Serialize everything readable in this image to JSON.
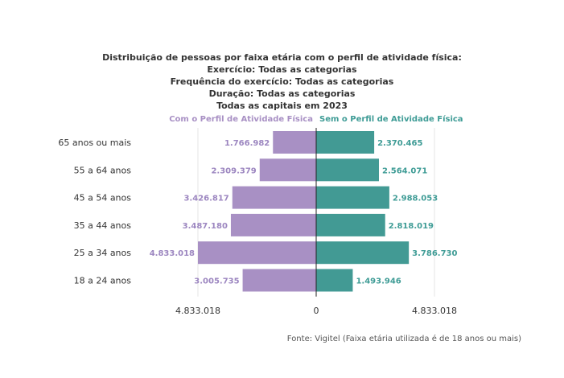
{
  "chart_data": {
    "type": "bar",
    "orientation": "horizontal-diverging",
    "title_lines": [
      "Distribuição de pessoas por faixa etária com o perfil de atividade física:",
      "Exercício: Todas as categorias",
      "Frequência do exercício: Todas as categorias",
      "Duração: Todas as categorias",
      "Todas as capitais em 2023"
    ],
    "categories": [
      "65 anos ou mais",
      "55 a 64 anos",
      "45 a 54 anos",
      "35 a 44 anos",
      "25 a 34 anos",
      "18 a 24 anos"
    ],
    "series": [
      {
        "name": "Com o Perfil de Atividade Física",
        "color": "#a890c4",
        "label_color": "#9c86c0",
        "side": "left",
        "values": [
          1766982,
          2309379,
          3426817,
          3487180,
          4833018,
          3005735
        ],
        "labels": [
          "1.766.982",
          "2.309.379",
          "3.426.817",
          "3.487.180",
          "4.833.018",
          "3.005.735"
        ]
      },
      {
        "name": "Sem o Perfil de Atividade Física",
        "color": "#429a94",
        "label_color": "#3f9c96",
        "side": "right",
        "values": [
          2370465,
          2564071,
          2988053,
          2818019,
          3786730,
          1493946
        ],
        "labels": [
          "2.370.465",
          "2.564.071",
          "2.988.053",
          "2.818.019",
          "3.786.730",
          "1.493.946"
        ]
      }
    ],
    "xlim": [
      -4833018,
      4833018
    ],
    "x_ticks": [
      "4.833.018",
      "0",
      "4.833.018"
    ],
    "grid": true,
    "legend_position": "top"
  },
  "source": "Fonte: Vigitel (Faixa etária utilizada é de 18 anos ou mais)"
}
